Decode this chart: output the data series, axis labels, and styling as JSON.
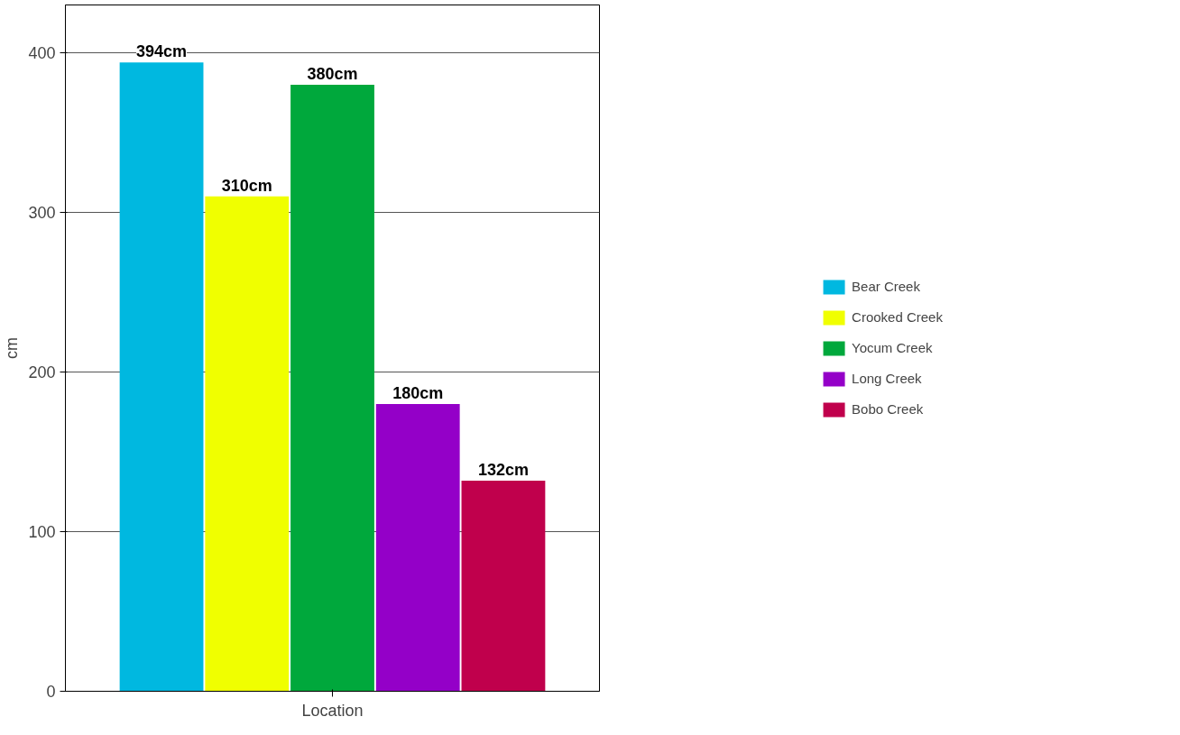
{
  "chart_data": {
    "type": "bar",
    "xlabel": "Location",
    "ylabel": "cm",
    "categories": [
      null
    ],
    "ylim": [
      0,
      430
    ],
    "yticks": [
      0,
      100,
      200,
      300,
      400
    ],
    "grid": "y",
    "legend": "right",
    "series": [
      {
        "name": "Bear Creek",
        "color": "#00b8e0",
        "values": [
          394
        ],
        "value_labels": [
          "394cm"
        ]
      },
      {
        "name": "Crooked Creek",
        "color": "#f0ff00",
        "values": [
          310
        ],
        "value_labels": [
          "310cm"
        ]
      },
      {
        "name": "Yocum Creek",
        "color": "#00a83c",
        "values": [
          380
        ],
        "value_labels": [
          "380cm"
        ]
      },
      {
        "name": "Long Creek",
        "color": "#9400c8",
        "values": [
          180
        ],
        "value_labels": [
          "180cm"
        ]
      },
      {
        "name": "Bobo Creek",
        "color": "#c0004c",
        "values": [
          132
        ],
        "value_labels": [
          "132cm"
        ]
      }
    ]
  }
}
